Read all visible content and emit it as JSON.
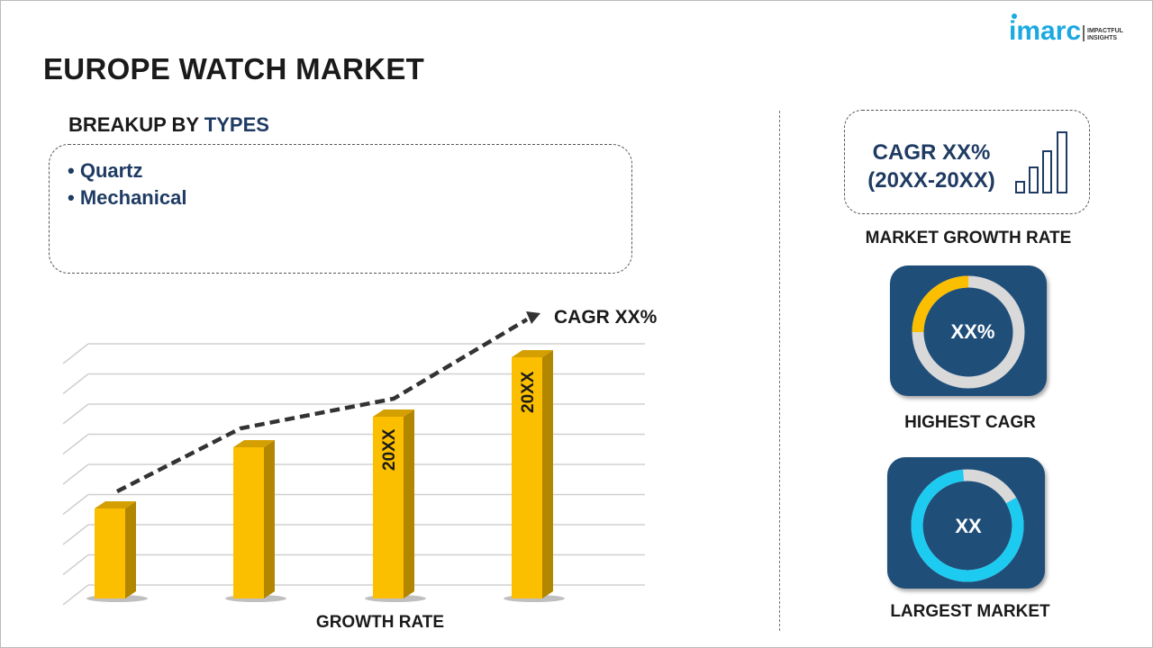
{
  "header": {
    "title": "EUROPE WATCH MARKET",
    "logo_text": "imarc",
    "logo_tagline": [
      "IMPACTFUL",
      "INSIGHTS"
    ]
  },
  "breakup": {
    "prefix": "BREAKUP BY ",
    "highlight": "TYPES",
    "items": [
      "Quartz",
      "Mechanical"
    ]
  },
  "chart_data": {
    "type": "bar",
    "xlabel": "GROWTH RATE",
    "bar_labels": [
      "",
      "",
      "20XX",
      "20XX"
    ],
    "values": [
      100,
      168,
      202,
      268
    ],
    "trend_label": "CAGR XX%",
    "bar_color": "#fbbf00",
    "grid": true
  },
  "market_growth": {
    "cagr_line1": "CAGR XX%",
    "cagr_line2": "(20XX-20XX)",
    "label": "MARKET GROWTH RATE"
  },
  "highest_cagr": {
    "value": "XX%",
    "label": "HIGHEST CAGR",
    "fill_fraction": 0.25,
    "color": "#fbbf00"
  },
  "largest_market": {
    "value": "XX",
    "label": "LARGEST MARKET",
    "fill_fraction": 0.82,
    "color": "#1ecbf0"
  },
  "colors": {
    "navy": "#1f3b63",
    "card": "#1f4e79",
    "accent": "#1ba9e1"
  }
}
